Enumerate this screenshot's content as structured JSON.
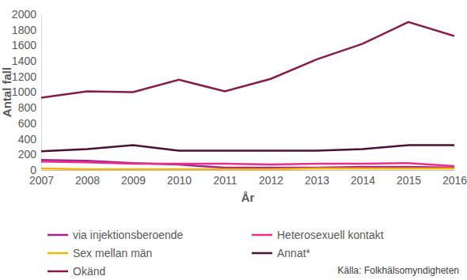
{
  "chart_data": {
    "type": "line",
    "x_label": "År",
    "y_label": "Antal fall",
    "annotations": [
      "Källa: Folkhälsomyndigheten"
    ],
    "x": [
      2007,
      2008,
      2009,
      2010,
      2011,
      2012,
      2013,
      2014,
      2015,
      2016
    ],
    "xlim": [
      2007,
      2016
    ],
    "xticks": [
      2007,
      2008,
      2009,
      2010,
      2011,
      2012,
      2013,
      2014,
      2015,
      2016
    ],
    "ylim": [
      0,
      2000
    ],
    "yticks": [
      0,
      200,
      400,
      600,
      800,
      1000,
      1200,
      1400,
      1600,
      1800,
      2000
    ],
    "grid": false,
    "legend": "bottom",
    "series": [
      {
        "name": "via injektionsberoende",
        "color": "#a2238d",
        "values": [
          130,
          120,
          90,
          70,
          30,
          30,
          30,
          40,
          40,
          30
        ]
      },
      {
        "name": "Heterosexuell kontakt",
        "color": "#e8308a",
        "values": [
          110,
          100,
          80,
          80,
          80,
          70,
          80,
          80,
          90,
          50
        ]
      },
      {
        "name": "Sex mellan män",
        "color": "#f7b500",
        "values": [
          20,
          10,
          10,
          10,
          10,
          10,
          20,
          20,
          20,
          20
        ]
      },
      {
        "name": "Annat*",
        "color": "#4a1038",
        "values": [
          240,
          270,
          320,
          250,
          250,
          250,
          250,
          270,
          320,
          320
        ]
      },
      {
        "name": "Okänd",
        "color": "#8b1a4a",
        "values": [
          930,
          1010,
          1000,
          1160,
          1010,
          1170,
          1420,
          1620,
          1900,
          1720
        ]
      }
    ]
  }
}
